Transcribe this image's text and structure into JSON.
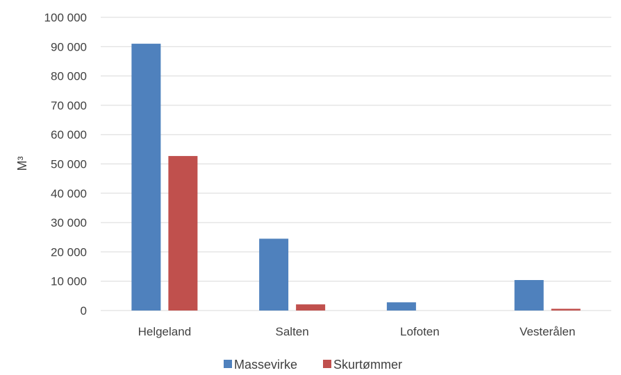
{
  "chart_data": {
    "type": "bar",
    "categories": [
      "Helgeland",
      "Salten",
      "Lofoten",
      "Vesterålen"
    ],
    "series": [
      {
        "name": "Massevirke",
        "color": "#4f81bd",
        "values": [
          91000,
          24500,
          2800,
          10400
        ]
      },
      {
        "name": "Skurtømmer",
        "color": "#c0504d",
        "values": [
          52700,
          2100,
          0,
          600
        ]
      }
    ],
    "ylabel": "M³",
    "ylim": [
      0,
      100000
    ],
    "yticks": [
      0,
      10000,
      20000,
      30000,
      40000,
      50000,
      60000,
      70000,
      80000,
      90000,
      100000
    ],
    "ytick_labels": [
      "0",
      "10 000",
      "20 000",
      "30 000",
      "40 000",
      "50 000",
      "60 000",
      "70 000",
      "80 000",
      "90 000",
      "100 000"
    ],
    "grid": true,
    "legend_position": "bottom"
  }
}
